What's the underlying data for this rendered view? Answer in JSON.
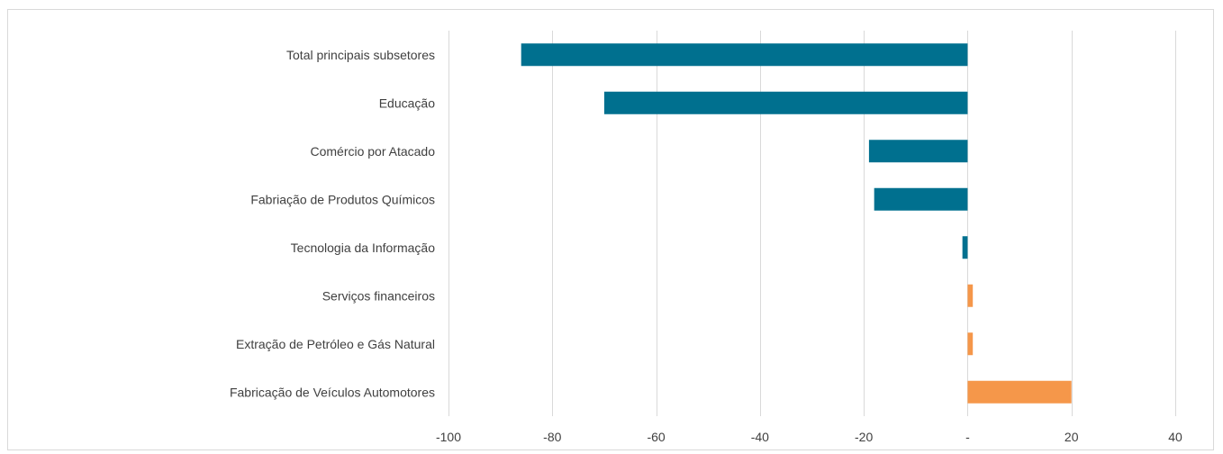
{
  "chart_data": {
    "type": "bar",
    "orientation": "horizontal",
    "categories": [
      "Total principais subsetores",
      "Educação",
      "Comércio por Atacado",
      "Fabriação de Produtos Químicos",
      "Tecnologia da Informação",
      "Serviços financeiros",
      "Extração de Petróleo e Gás Natural",
      "Fabricação de Veículos Automotores"
    ],
    "values": [
      -86,
      -70,
      -19,
      -18,
      -1,
      1,
      1,
      20
    ],
    "colors": {
      "negative": "#00708f",
      "positive": "#f5974a"
    },
    "xlim": [
      -100,
      40
    ],
    "x_ticks": [
      -100,
      -80,
      -60,
      -40,
      -20,
      0,
      20,
      40
    ],
    "x_tick_labels": [
      "-100",
      "-80",
      "-60",
      "-40",
      "-20",
      "-",
      "20",
      "40"
    ],
    "gridlines": "vertical",
    "grid_color": "#d9d9d9",
    "title": "",
    "xlabel": "",
    "ylabel": ""
  }
}
